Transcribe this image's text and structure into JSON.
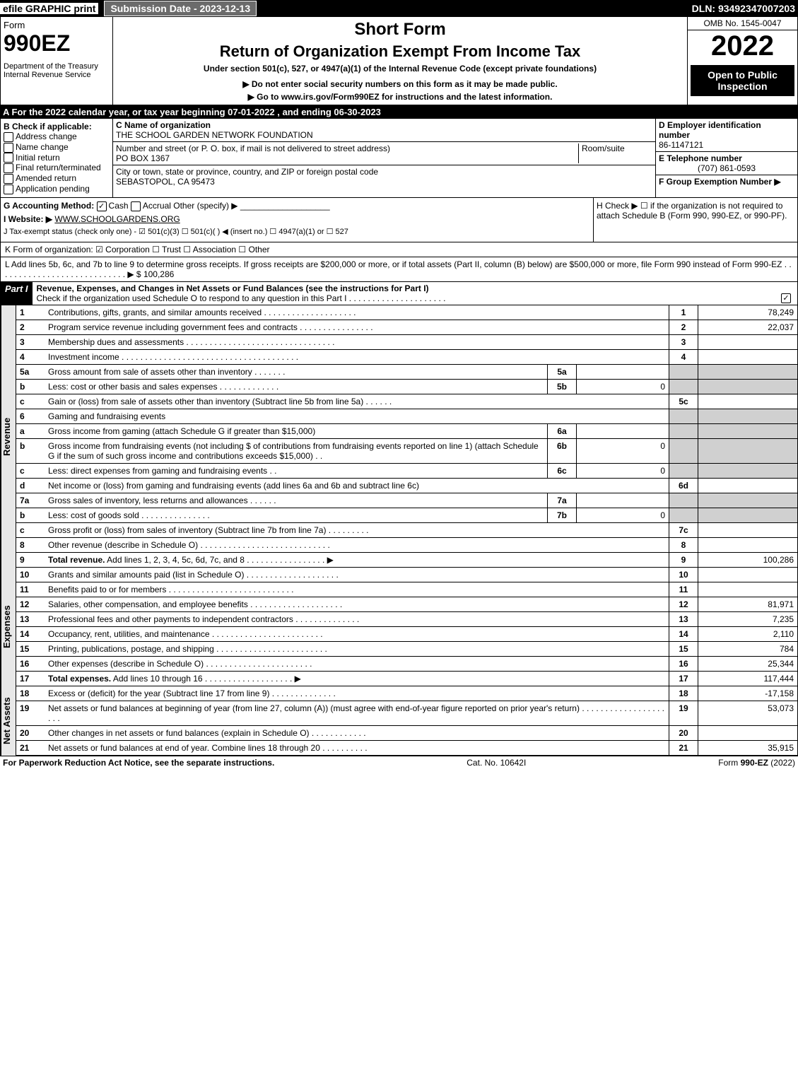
{
  "topbar": {
    "efile": "efile GRAPHIC print",
    "submission": "Submission Date - 2023-12-13",
    "dln": "DLN: 93492347007203"
  },
  "header": {
    "form_label": "Form",
    "form_number": "990EZ",
    "department": "Department of the Treasury",
    "irs": "Internal Revenue Service",
    "short_form": "Short Form",
    "return_title": "Return of Organization Exempt From Income Tax",
    "under_section": "Under section 501(c), 527, or 4947(a)(1) of the Internal Revenue Code (except private foundations)",
    "warning1": "▶ Do not enter social security numbers on this form as it may be made public.",
    "warning2": "▶ Go to www.irs.gov/Form990EZ for instructions and the latest information.",
    "omb": "OMB No. 1545-0047",
    "year": "2022",
    "open": "Open to Public Inspection"
  },
  "section_a": "A  For the 2022 calendar year, or tax year beginning 07-01-2022 , and ending 06-30-2023",
  "section_b": {
    "header": "B  Check if applicable:",
    "items": [
      "Address change",
      "Name change",
      "Initial return",
      "Final return/terminated",
      "Amended return",
      "Application pending"
    ]
  },
  "section_c": {
    "name_label": "C Name of organization",
    "name": "THE SCHOOL GARDEN NETWORK FOUNDATION",
    "street_label": "Number and street (or P. O. box, if mail is not delivered to street address)",
    "street": "PO BOX 1367",
    "room_label": "Room/suite",
    "city_label": "City or town, state or province, country, and ZIP or foreign postal code",
    "city": "SEBASTOPOL, CA  95473"
  },
  "section_d": {
    "d_label": "D Employer identification number",
    "d_value": "86-1147121",
    "e_label": "E Telephone number",
    "e_value": "(707) 861-0593",
    "f_label": "F Group Exemption Number  ▶"
  },
  "section_g": {
    "label": "G Accounting Method:",
    "cash": "Cash",
    "accrual": "Accrual",
    "other": "Other (specify) ▶"
  },
  "section_h": "H  Check ▶ ☐ if the organization is not required to attach Schedule B (Form 990, 990-EZ, or 990-PF).",
  "section_i": {
    "label": "I Website: ▶",
    "value": "WWW.SCHOOLGARDENS.ORG"
  },
  "section_j": "J Tax-exempt status (check only one) - ☑ 501(c)(3) ☐ 501(c)(  ) ◀ (insert no.) ☐ 4947(a)(1) or ☐ 527",
  "section_k": "K Form of organization:  ☑ Corporation  ☐ Trust  ☐ Association  ☐ Other",
  "section_l": {
    "text": "L Add lines 5b, 6c, and 7b to line 9 to determine gross receipts. If gross receipts are $200,000 or more, or if total assets (Part II, column (B) below) are $500,000 or more, file Form 990 instead of Form 990-EZ  . . . . . . . . . . . . . . . . . . . . . . . . . . . . ▶ $",
    "value": "100,286"
  },
  "part1": {
    "header": "Part I",
    "title": "Revenue, Expenses, and Changes in Net Assets or Fund Balances (see the instructions for Part I)",
    "check_text": "Check if the organization used Schedule O to respond to any question in this Part I . . . . . . . . . . . . . . . . . . . . ."
  },
  "revenue": [
    {
      "n": "1",
      "desc": "Contributions, gifts, grants, and similar amounts received . . . . . . . . . . . . . . . . . . . .",
      "ln": "1",
      "val": "78,249"
    },
    {
      "n": "2",
      "desc": "Program service revenue including government fees and contracts . . . . . . . . . . . . . . . .",
      "ln": "2",
      "val": "22,037"
    },
    {
      "n": "3",
      "desc": "Membership dues and assessments . . . . . . . . . . . . . . . . . . . . . . . . . . . . . . . .",
      "ln": "3",
      "val": ""
    },
    {
      "n": "4",
      "desc": "Investment income . . . . . . . . . . . . . . . . . . . . . . . . . . . . . . . . . . . . . .",
      "ln": "4",
      "val": ""
    }
  ],
  "line5a_desc": "Gross amount from sale of assets other than inventory . . . . . . .",
  "line5a_label": "5a",
  "line5a_val": "",
  "line5b_desc": "Less: cost or other basis and sales expenses . . . . . . . . . . . . .",
  "line5b_label": "5b",
  "line5b_val": "0",
  "line5c_desc": "Gain or (loss) from sale of assets other than inventory (Subtract line 5b from line 5a) . . . . . .",
  "line5c_label": "5c",
  "line5c_val": "",
  "line6_desc": "Gaming and fundraising events",
  "line6a_desc": "Gross income from gaming (attach Schedule G if greater than $15,000)",
  "line6a_label": "6a",
  "line6a_val": "",
  "line6b_desc": "Gross income from fundraising events (not including $                  of contributions from fundraising events reported on line 1) (attach Schedule G if the sum of such gross income and contributions exceeds $15,000)   . .",
  "line6b_label": "6b",
  "line6b_val": "0",
  "line6c_desc": "Less: direct expenses from gaming and fundraising events   . .",
  "line6c_label": "6c",
  "line6c_val": "0",
  "line6d_desc": "Net income or (loss) from gaming and fundraising events (add lines 6a and 6b and subtract line 6c)",
  "line6d_label": "6d",
  "line6d_val": "",
  "line7a_desc": "Gross sales of inventory, less returns and allowances . . . . . .",
  "line7a_label": "7a",
  "line7a_val": "",
  "line7b_desc": "Less: cost of goods sold     . . . . . . . . . . . . . . .",
  "line7b_label": "7b",
  "line7b_val": "0",
  "line7c_desc": "Gross profit or (loss) from sales of inventory (Subtract line 7b from line 7a) . . . . . . . . .",
  "line7c_label": "7c",
  "line7c_val": "",
  "line8_desc": "Other revenue (describe in Schedule O) . . . . . . . . . . . . . . . . . . . . . . . . . . . .",
  "line8_label": "8",
  "line8_val": "",
  "line9_desc": "Total revenue. Add lines 1, 2, 3, 4, 5c, 6d, 7c, and 8  . . . . . . . . . . . . . . . . .   ▶",
  "line9_label": "9",
  "line9_val": "100,286",
  "expenses": [
    {
      "n": "10",
      "desc": "Grants and similar amounts paid (list in Schedule O) . . . . . . . . . . . . . . . . . . . .",
      "ln": "10",
      "val": ""
    },
    {
      "n": "11",
      "desc": "Benefits paid to or for members     . . . . . . . . . . . . . . . . . . . . . . . . . . .",
      "ln": "11",
      "val": ""
    },
    {
      "n": "12",
      "desc": "Salaries, other compensation, and employee benefits . . . . . . . . . . . . . . . . . . . .",
      "ln": "12",
      "val": "81,971"
    },
    {
      "n": "13",
      "desc": "Professional fees and other payments to independent contractors . . . . . . . . . . . . . .",
      "ln": "13",
      "val": "7,235"
    },
    {
      "n": "14",
      "desc": "Occupancy, rent, utilities, and maintenance . . . . . . . . . . . . . . . . . . . . . . . .",
      "ln": "14",
      "val": "2,110"
    },
    {
      "n": "15",
      "desc": "Printing, publications, postage, and shipping . . . . . . . . . . . . . . . . . . . . . . . .",
      "ln": "15",
      "val": "784"
    },
    {
      "n": "16",
      "desc": "Other expenses (describe in Schedule O)     . . . . . . . . . . . . . . . . . . . . . . .",
      "ln": "16",
      "val": "25,344"
    },
    {
      "n": "17",
      "desc": "Total expenses. Add lines 10 through 16     . . . . . . . . . . . . . . . . . . .  ▶",
      "ln": "17",
      "val": "117,444"
    }
  ],
  "netassets": [
    {
      "n": "18",
      "desc": "Excess or (deficit) for the year (Subtract line 17 from line 9)      . . . . . . . . . . . . . .",
      "ln": "18",
      "val": "-17,158"
    },
    {
      "n": "19",
      "desc": "Net assets or fund balances at beginning of year (from line 27, column (A)) (must agree with end-of-year figure reported on prior year's return) . . . . . . . . . . . . . . . . . . . . .",
      "ln": "19",
      "val": "53,073"
    },
    {
      "n": "20",
      "desc": "Other changes in net assets or fund balances (explain in Schedule O) . . . . . . . . . . . .",
      "ln": "20",
      "val": ""
    },
    {
      "n": "21",
      "desc": "Net assets or fund balances at end of year. Combine lines 18 through 20 . . . . . . . . . .",
      "ln": "21",
      "val": "35,915"
    }
  ],
  "side_labels": {
    "revenue": "Revenue",
    "expenses": "Expenses",
    "netassets": "Net Assets"
  },
  "footer": {
    "left": "For Paperwork Reduction Act Notice, see the separate instructions.",
    "center": "Cat. No. 10642I",
    "right": "Form 990-EZ (2022)"
  }
}
